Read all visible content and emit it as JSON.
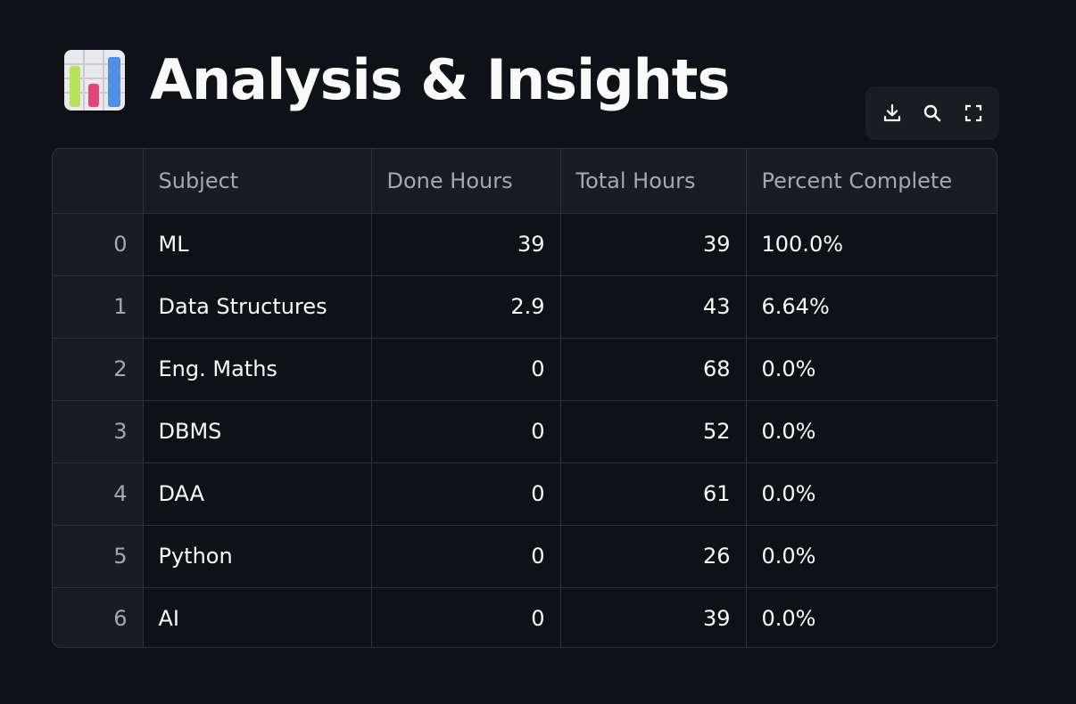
{
  "page": {
    "title": "Analysis & Insights",
    "title_icon": "bar-chart-icon"
  },
  "toolbar": {
    "items": [
      {
        "icon": "download-icon"
      },
      {
        "icon": "search-icon"
      },
      {
        "icon": "fullscreen-icon"
      }
    ]
  },
  "table": {
    "columns": [
      "",
      "Subject",
      "Done Hours",
      "Total Hours",
      "Percent Complete"
    ],
    "rows": [
      {
        "index": "0",
        "subject": "ML",
        "done": "39",
        "total": "39",
        "percent": "100.0%"
      },
      {
        "index": "1",
        "subject": "Data Structures",
        "done": "2.9",
        "total": "43",
        "percent": "6.64%"
      },
      {
        "index": "2",
        "subject": "Eng. Maths",
        "done": "0",
        "total": "68",
        "percent": "0.0%"
      },
      {
        "index": "3",
        "subject": "DBMS",
        "done": "0",
        "total": "52",
        "percent": "0.0%"
      },
      {
        "index": "4",
        "subject": "DAA",
        "done": "0",
        "total": "61",
        "percent": "0.0%"
      },
      {
        "index": "5",
        "subject": "Python",
        "done": "0",
        "total": "26",
        "percent": "0.0%"
      },
      {
        "index": "6",
        "subject": "AI",
        "done": "0",
        "total": "39",
        "percent": "0.0%"
      }
    ]
  },
  "colors": {
    "background": "#0e1117",
    "header_bg": "#1a1c24",
    "border": "#2f3139",
    "text": "#fafafa",
    "muted_text": "#a3a8b4"
  }
}
